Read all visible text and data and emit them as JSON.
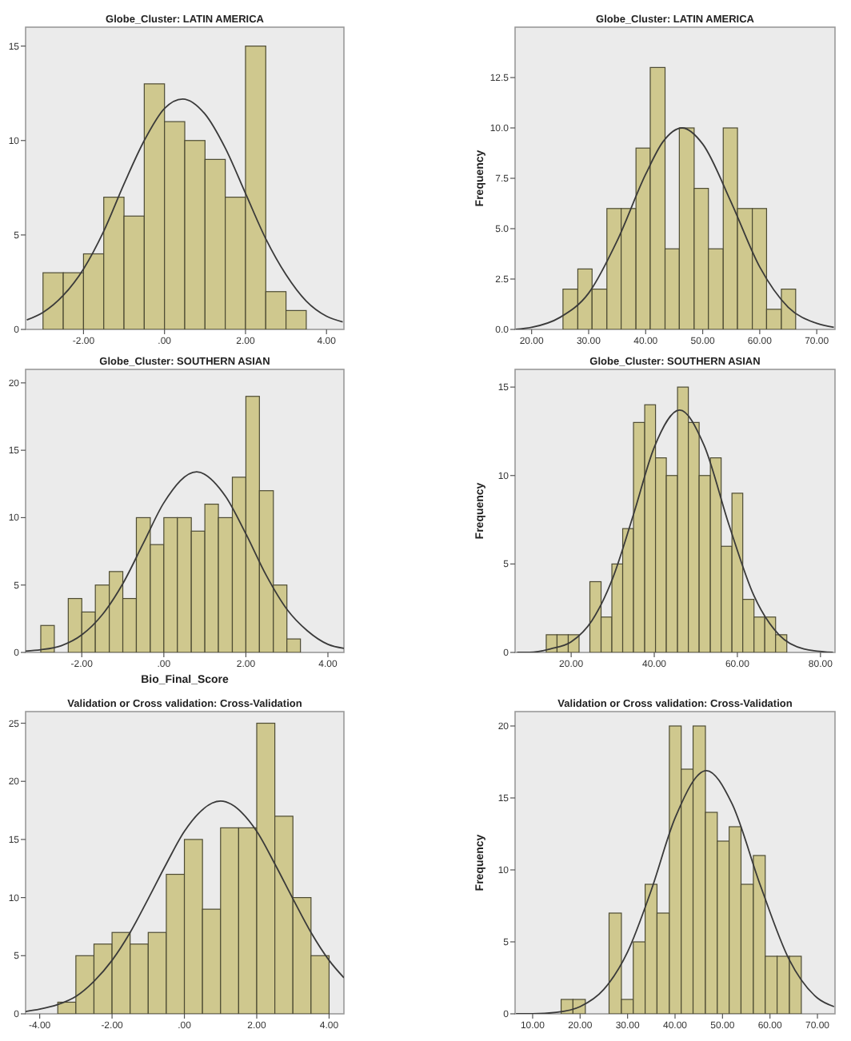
{
  "chart_data": [
    {
      "type": "histogram",
      "title": "Globe_Cluster: LATIN AMERICA",
      "bins": [
        -3,
        -2.5,
        -2,
        -1.5,
        -1,
        -0.5,
        0,
        0.5,
        1,
        1.5,
        2,
        2.5,
        3,
        3.5
      ],
      "values": [
        3,
        3,
        4,
        7,
        6,
        13,
        11,
        10,
        9,
        7,
        15,
        2,
        1
      ],
      "color": "#cfc88e",
      "xlim": [
        -3.43,
        4.43
      ],
      "ylim": [
        0,
        16
      ],
      "xticks": [
        {
          "value": -2,
          "label": "-2.00"
        },
        {
          "value": 0,
          "label": ".00"
        },
        {
          "value": 2,
          "label": "2.00"
        },
        {
          "value": 4,
          "label": "4.00"
        }
      ],
      "yticks": [
        0,
        5,
        10,
        15
      ],
      "series": [
        {
          "type": "line",
          "color": "#3a3a3a",
          "x": [
            -3.4,
            -3,
            -2.5,
            -2,
            -1.5,
            -1,
            -0.5,
            0,
            0.45,
            1,
            1.5,
            2,
            2.5,
            3,
            3.5,
            4,
            4.4
          ],
          "values": [
            0.5,
            0.9,
            1.8,
            3.2,
            5.2,
            7.7,
            10,
            11.7,
            12.2,
            11.4,
            9.6,
            7.2,
            4.8,
            2.9,
            1.5,
            0.7,
            0.4
          ]
        }
      ]
    },
    {
      "type": "histogram",
      "title": "Globe_Cluster: LATIN AMERICA",
      "ylabel": "Frequency",
      "bins": [
        25.5,
        28.1,
        30.6,
        33.2,
        35.7,
        38.3,
        40.8,
        43.4,
        45.9,
        48.5,
        51,
        53.6,
        56.1,
        58.7,
        61.2,
        63.8,
        66.3
      ],
      "values": [
        2,
        3,
        2,
        6,
        6,
        9,
        13,
        4,
        10,
        7,
        4,
        10,
        6,
        6,
        1,
        2
      ],
      "color": "#cfc88e",
      "xlim": [
        17.1,
        73.2
      ],
      "ylim": [
        0,
        15
      ],
      "xticks": [
        {
          "value": 20,
          "label": "20.00"
        },
        {
          "value": 30,
          "label": "30.00"
        },
        {
          "value": 40,
          "label": "40.00"
        },
        {
          "value": 50,
          "label": "50.00"
        },
        {
          "value": 60,
          "label": "60.00"
        },
        {
          "value": 70,
          "label": "70.00"
        }
      ],
      "yticks": [
        {
          "value": 0,
          "label": "0.0"
        },
        {
          "value": 2.5,
          "label": "2.5"
        },
        {
          "value": 5,
          "label": "5.0"
        },
        {
          "value": 7.5,
          "label": "7.5"
        },
        {
          "value": 10,
          "label": "10.0"
        },
        {
          "value": 12.5,
          "label": "12.5"
        }
      ],
      "series": [
        {
          "type": "line",
          "color": "#3a3a3a",
          "x": [
            17.2,
            20,
            25,
            30,
            35,
            40,
            43,
            46.4,
            50,
            55,
            60,
            65,
            70,
            73
          ],
          "values": [
            0,
            0.1,
            0.6,
            1.8,
            4.4,
            7.7,
            9.3,
            10,
            9.2,
            6.3,
            3.1,
            1.1,
            0.3,
            0.1
          ]
        }
      ]
    },
    {
      "type": "histogram",
      "title": "Globe_Cluster: SOUTHERN ASIAN",
      "xlabel": "Bio_Final_Score",
      "bins": [
        -3,
        -2.67,
        -2.33,
        -2,
        -1.67,
        -1.33,
        -1,
        -0.67,
        -0.33,
        0,
        0.33,
        0.67,
        1,
        1.33,
        1.67,
        2,
        2.33,
        2.67,
        3,
        3.33
      ],
      "values": [
        2,
        0,
        4,
        3,
        5,
        6,
        4,
        10,
        8,
        10,
        10,
        9,
        11,
        10,
        13,
        19,
        12,
        5,
        1
      ],
      "color": "#cfc88e",
      "xlim": [
        -3.37,
        4.39
      ],
      "ylim": [
        0,
        21
      ],
      "xticks": [
        {
          "value": -2,
          "label": "-2.00"
        },
        {
          "value": 0,
          "label": ".00"
        },
        {
          "value": 2,
          "label": "2.00"
        },
        {
          "value": 4,
          "label": "4.00"
        }
      ],
      "yticks": [
        0,
        5,
        10,
        15,
        20
      ],
      "series": [
        {
          "type": "line",
          "color": "#3a3a3a",
          "x": [
            -3.37,
            -3,
            -2.5,
            -2,
            -1.5,
            -1,
            -0.5,
            0,
            0.8,
            1.5,
            2,
            2.5,
            3,
            3.5,
            4,
            4.39
          ],
          "values": [
            0.1,
            0.2,
            0.5,
            1.3,
            2.8,
            5.1,
            8.1,
            11.1,
            13.4,
            11.6,
            8.8,
            5.7,
            3.2,
            1.6,
            0.6,
            0.3
          ]
        }
      ]
    },
    {
      "type": "histogram",
      "title": "Globe_Cluster: SOUTHERN ASIAN",
      "ylabel": "Frequency",
      "bins": [
        14,
        16.6,
        19.3,
        21.9,
        24.5,
        27.2,
        29.8,
        32.4,
        35,
        37.7,
        40.3,
        42.9,
        45.6,
        48.2,
        50.8,
        53.5,
        56.1,
        58.7,
        61.3,
        64,
        66.6,
        69.2,
        71.9
      ],
      "values": [
        1,
        1,
        1,
        0,
        4,
        2,
        5,
        7,
        13,
        14,
        11,
        10,
        15,
        13,
        10,
        11,
        6,
        9,
        3,
        2,
        2,
        1
      ],
      "color": "#cfc88e",
      "xlim": [
        6.5,
        83.5
      ],
      "ylim": [
        0,
        16
      ],
      "xticks": [
        {
          "value": 20,
          "label": "20.00"
        },
        {
          "value": 40,
          "label": "40.00"
        },
        {
          "value": 60,
          "label": "60.00"
        },
        {
          "value": 80,
          "label": "80.00"
        }
      ],
      "yticks": [
        0,
        5,
        10,
        15
      ],
      "series": [
        {
          "type": "line",
          "color": "#3a3a3a",
          "x": [
            7,
            10,
            15,
            20,
            25,
            30,
            35,
            40,
            46.1,
            52,
            58,
            64,
            70,
            76,
            83
          ],
          "values": [
            0,
            0,
            0.2,
            0.6,
            1.8,
            4.2,
            7.8,
            11.6,
            13.7,
            11.7,
            7.2,
            3.2,
            1,
            0.2,
            0
          ]
        }
      ]
    },
    {
      "type": "histogram",
      "title": "Validation or Cross validation: Cross-Validation",
      "bins": [
        -3.5,
        -3,
        -2.5,
        -2,
        -1.5,
        -1,
        -0.5,
        0,
        0.5,
        1,
        1.5,
        2,
        2.5,
        3,
        3.5,
        4
      ],
      "values": [
        1,
        5,
        6,
        7,
        6,
        7,
        12,
        15,
        9,
        16,
        16,
        25,
        17,
        10,
        5
      ],
      "color": "#cfc88e",
      "xlim": [
        -4.39,
        4.41
      ],
      "ylim": [
        0,
        26
      ],
      "xticks": [
        {
          "value": -4,
          "label": "-4.00"
        },
        {
          "value": -2,
          "label": "-2.00"
        },
        {
          "value": 0,
          "label": ".00"
        },
        {
          "value": 2,
          "label": "2.00"
        },
        {
          "value": 4,
          "label": "4.00"
        }
      ],
      "yticks": [
        0,
        5,
        10,
        15,
        20,
        25
      ],
      "series": [
        {
          "type": "line",
          "color": "#3a3a3a",
          "x": [
            -4.39,
            -4,
            -3.5,
            -3,
            -2.5,
            -2,
            -1.5,
            -1,
            -0.5,
            0,
            1,
            2,
            2.5,
            3,
            3.5,
            4,
            4.41
          ],
          "values": [
            0.2,
            0.4,
            0.8,
            1.5,
            2.8,
            4.6,
            7,
            9.9,
            12.9,
            15.7,
            18.3,
            15.7,
            12.9,
            9.9,
            7,
            4.6,
            3.1
          ]
        }
      ]
    },
    {
      "type": "histogram",
      "title": "Validation or Cross validation: Cross-Validation",
      "ylabel": "Frequency",
      "bins": [
        16,
        18.5,
        21.1,
        26.1,
        28.7,
        31.2,
        33.7,
        36.2,
        38.8,
        41.3,
        43.8,
        46.4,
        48.9,
        51.4,
        53.9,
        56.5,
        59,
        61.5,
        64.1,
        66.6
      ],
      "values": [
        1,
        1,
        0,
        7,
        1,
        5,
        9,
        7,
        20,
        17,
        20,
        14,
        12,
        13,
        9,
        11,
        4,
        4,
        4
      ],
      "color": "#cfc88e",
      "xlim": [
        6.3,
        73.7
      ],
      "ylim": [
        0,
        21
      ],
      "xticks": [
        {
          "value": 10,
          "label": "10.00"
        },
        {
          "value": 20,
          "label": "20.00"
        },
        {
          "value": 30,
          "label": "30.00"
        },
        {
          "value": 40,
          "label": "40.00"
        },
        {
          "value": 50,
          "label": "50.00"
        },
        {
          "value": 60,
          "label": "60.00"
        },
        {
          "value": 70,
          "label": "70.00"
        }
      ],
      "yticks": [
        0,
        5,
        10,
        15,
        20
      ],
      "series": [
        {
          "type": "line",
          "color": "#3a3a3a",
          "x": [
            6.5,
            10,
            15,
            20,
            25,
            30,
            35,
            40,
            46.6,
            52,
            58,
            64,
            70,
            73.5
          ],
          "values": [
            0,
            0,
            0.1,
            0.5,
            1.7,
            4.3,
            8.6,
            13.6,
            16.9,
            14.6,
            8.9,
            3.8,
            1.1,
            0.5
          ]
        }
      ]
    }
  ]
}
